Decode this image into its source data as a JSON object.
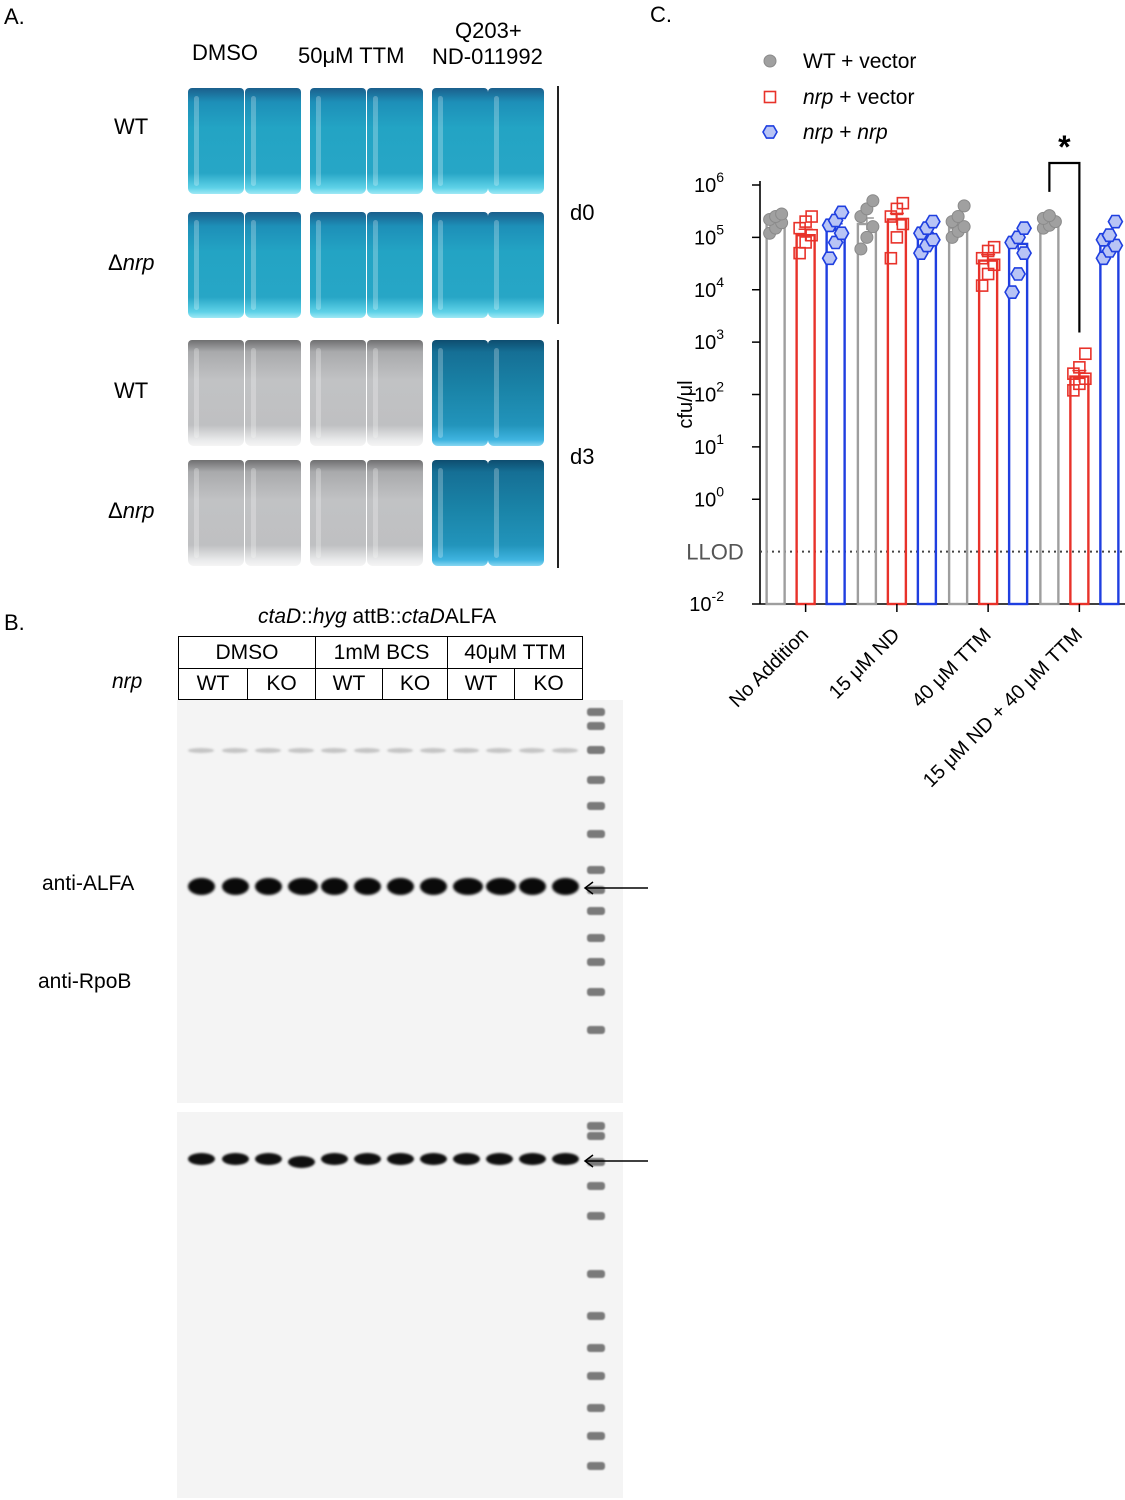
{
  "panelA": {
    "label": "A.",
    "columns": [
      "DMSO",
      "50μM TTM",
      "Q203+",
      "ND-011992"
    ],
    "rows": [
      "WT",
      "nrp",
      "WT",
      "nrp"
    ],
    "delta": "Δ",
    "days": [
      "d0",
      "d3"
    ]
  },
  "panelB": {
    "label": "B.",
    "title_italic_1": "ctaD",
    "title_sep_1": "::",
    "title_italic_2": "hyg",
    "title_plain_1": " attB::",
    "title_italic_3": "ctaD",
    "title_plain_2": "ALFA",
    "treatments": [
      "DMSO",
      "1mM BCS",
      "40μM TTM"
    ],
    "row_label": "nrp",
    "genotypes": [
      "WT",
      "KO",
      "WT",
      "KO",
      "WT",
      "KO"
    ],
    "blot_labels": [
      "anti-ALFA",
      "anti-RpoB"
    ]
  },
  "chart_data": {
    "type": "bar",
    "panel_label": "C.",
    "title": "",
    "xlabel": "",
    "ylabel": "cfu/μl",
    "yscale": "log",
    "ylim": [
      0.01,
      1000000
    ],
    "yticks": [
      {
        "base": "10",
        "exp": "-2",
        "value": 0.01
      },
      {
        "base": "10",
        "exp": "0",
        "value": 1
      },
      {
        "base": "10",
        "exp": "1",
        "value": 10
      },
      {
        "base": "10",
        "exp": "2",
        "value": 100
      },
      {
        "base": "10",
        "exp": "3",
        "value": 1000
      },
      {
        "base": "10",
        "exp": "4",
        "value": 10000
      },
      {
        "base": "10",
        "exp": "5",
        "value": 100000
      },
      {
        "base": "10",
        "exp": "6",
        "value": 1000000
      }
    ],
    "categories": [
      "No Addition",
      "15 μM ND",
      "40 μM TTM",
      "15 μM ND + 40 μM TTM"
    ],
    "series": [
      {
        "name": "WT + vector",
        "name_italic": "WT",
        "name_rest": " + vector",
        "color": "#9e9e9e",
        "marker": "circle",
        "values": [
          190000,
          180000,
          150000,
          180000
        ],
        "points": [
          [
            120000,
            150000,
            190000,
            220000,
            250000,
            280000
          ],
          [
            60000,
            100000,
            160000,
            250000,
            350000,
            500000
          ],
          [
            100000,
            130000,
            160000,
            200000,
            250000,
            400000
          ],
          [
            150000,
            170000,
            200000,
            230000,
            260000
          ]
        ]
      },
      {
        "name": "nrp + vector",
        "name_italic": "nrp",
        "name_rest": " + vector",
        "color": "#e8322a",
        "marker": "square",
        "values": [
          110000,
          220000,
          36000,
          220
        ],
        "points": [
          [
            50000,
            80000,
            110000,
            150000,
            200000,
            250000
          ],
          [
            40000,
            100000,
            180000,
            250000,
            350000,
            450000
          ],
          [
            12000,
            20000,
            30000,
            40000,
            55000,
            65000
          ],
          [
            120,
            160,
            200,
            250,
            330,
            600
          ]
        ]
      },
      {
        "name": "nrp + nrp",
        "name_italic": "nrp",
        "name_rest": " + ",
        "name_italic2": "nrp",
        "color": "#1f3fe0",
        "marker": "hexagon",
        "values": [
          140000,
          95000,
          75000,
          70000
        ],
        "points": [
          [
            40000,
            80000,
            120000,
            170000,
            210000,
            300000
          ],
          [
            50000,
            70000,
            90000,
            120000,
            150000,
            200000
          ],
          [
            9000,
            20000,
            50000,
            80000,
            100000,
            150000
          ],
          [
            40000,
            55000,
            70000,
            90000,
            110000,
            200000
          ]
        ]
      }
    ],
    "llod": {
      "label": "LLOD",
      "value": 0.1
    },
    "significance": {
      "symbol": "*",
      "between": [
        "WT + vector",
        "nrp + vector"
      ],
      "category": "15 μM ND + 40 μM TTM"
    },
    "legend_position": "top"
  }
}
